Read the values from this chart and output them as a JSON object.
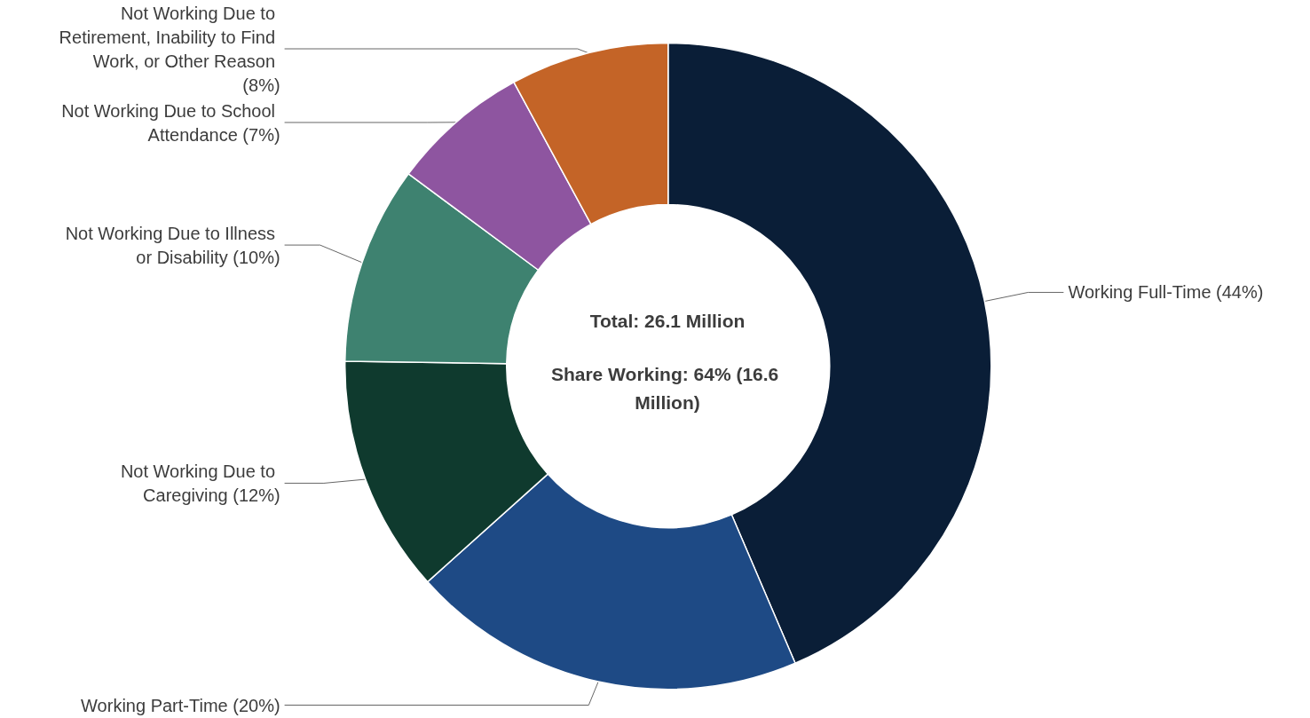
{
  "chart_data": {
    "type": "donut",
    "categories": [
      "Working Full-Time",
      "Working Part-Time",
      "Not Working Due to Caregiving",
      "Not Working Due to Illness or Disability",
      "Not Working Due to School Attendance",
      "Not Working Due to Retirement, Inability to Find Work, or Other Reason"
    ],
    "values": [
      44,
      20,
      12,
      10,
      7,
      8
    ],
    "value_labels": [
      "(44%)",
      "(20%)",
      "(12%)",
      "(10%)",
      "(7%)",
      "(8%)"
    ],
    "colors": [
      "#0a1e37",
      "#1e4a85",
      "#0f3a2e",
      "#3e8270",
      "#8e55a0",
      "#c46427"
    ],
    "annotations": [
      "Total: 26.1 Million",
      "Share Working: 64% (16.6 Million)"
    ],
    "legend": false
  }
}
